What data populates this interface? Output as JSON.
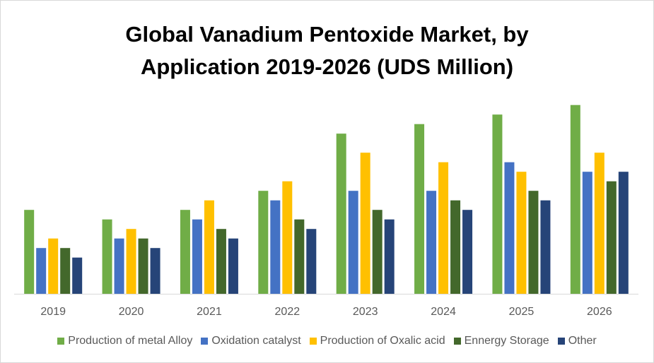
{
  "chart_data": {
    "type": "bar",
    "title_lines": [
      "Global  Vanadium Pentoxide Market, by",
      "Application 2019-2026 (UDS Million)"
    ],
    "categories": [
      "2019",
      "2020",
      "2021",
      "2022",
      "2023",
      "2024",
      "2025",
      "2026"
    ],
    "ylim": [
      0,
      20
    ],
    "grid": false,
    "legend_position": "bottom",
    "series": [
      {
        "name": "Production of metal Alloy",
        "color": "#70AD47",
        "values": [
          8.8,
          7.8,
          8.8,
          10.8,
          16.8,
          17.8,
          18.8,
          19.8
        ]
      },
      {
        "name": "Oxidation catalyst",
        "color": "#4472C4",
        "values": [
          4.8,
          5.8,
          7.8,
          9.8,
          10.8,
          10.8,
          13.8,
          12.8
        ]
      },
      {
        "name": "Production of Oxalic acid",
        "color": "#FFC000",
        "values": [
          5.8,
          6.8,
          9.8,
          11.8,
          14.8,
          13.8,
          12.8,
          14.8
        ]
      },
      {
        "name": "Ennergy Storage",
        "color": "#43682B",
        "values": [
          4.8,
          5.8,
          6.8,
          7.8,
          8.8,
          9.8,
          10.8,
          11.8
        ]
      },
      {
        "name": "Other",
        "color": "#264478",
        "values": [
          3.8,
          4.8,
          5.8,
          6.8,
          7.8,
          8.8,
          9.8,
          12.8
        ]
      }
    ]
  }
}
